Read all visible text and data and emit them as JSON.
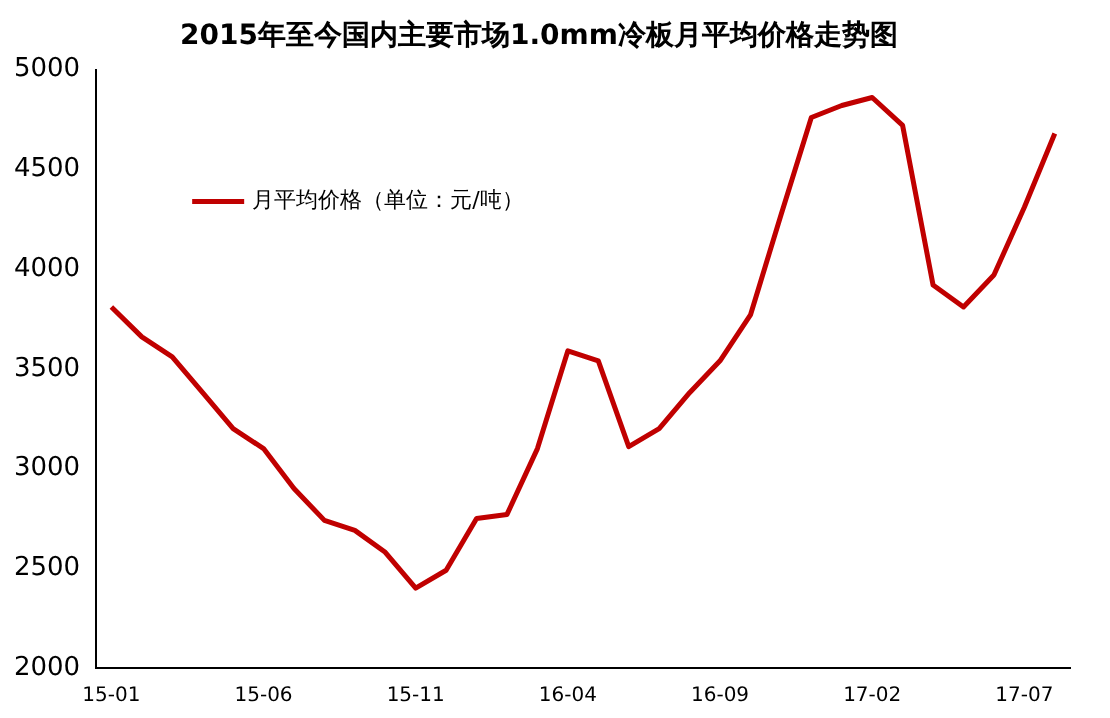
{
  "chart_data": {
    "type": "line",
    "title": "2015年至今国内主要市场1.0mm冷板月平均价格走势图",
    "categories": [
      "15-01",
      null,
      null,
      null,
      null,
      "15-06",
      null,
      null,
      null,
      null,
      "15-11",
      null,
      null,
      null,
      null,
      "16-04",
      null,
      null,
      null,
      null,
      "16-09",
      null,
      null,
      null,
      null,
      "17-02",
      null,
      null,
      null,
      null,
      "17-07",
      null
    ],
    "series": [
      {
        "name": "月平均价格（单位：元/吨）",
        "color": "#c00000",
        "values": [
          3810,
          3660,
          3560,
          3380,
          3200,
          3100,
          2900,
          2740,
          2690,
          2580,
          2400,
          2490,
          2750,
          2770,
          3100,
          3590,
          3540,
          3110,
          3200,
          3380,
          3540,
          3770,
          4270,
          4760,
          4820,
          4860,
          4720,
          3920,
          3810,
          3970,
          4310,
          4680
        ]
      }
    ],
    "ylim": [
      2000,
      5000
    ],
    "yticks": [
      2000,
      2500,
      3000,
      3500,
      4000,
      4500,
      5000
    ],
    "grid": false,
    "legend": "top left",
    "marker": "none",
    "line_style": "solid"
  }
}
